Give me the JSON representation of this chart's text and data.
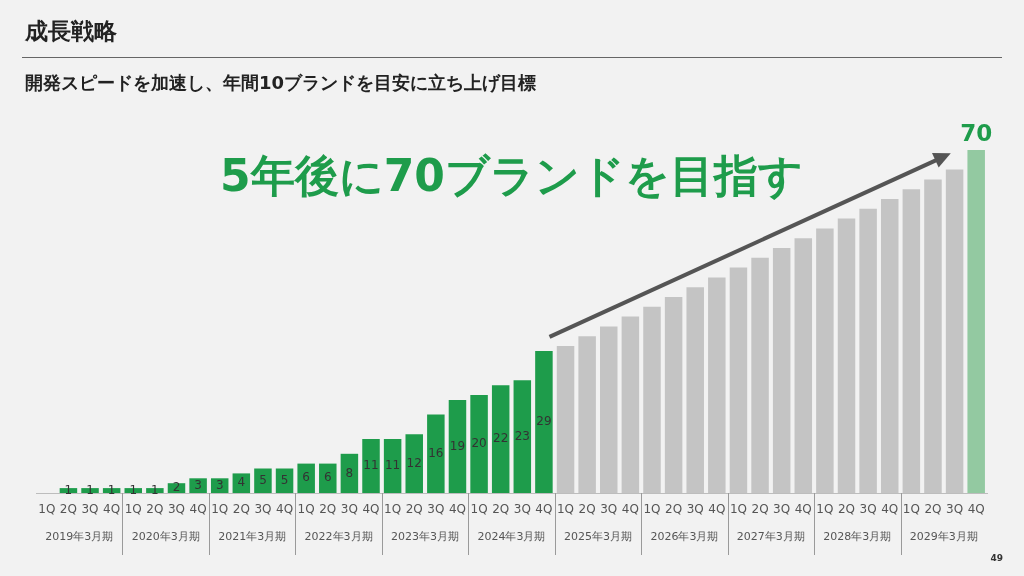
{
  "chart_data": {
    "type": "bar",
    "title": "成長戦略",
    "subtitle": "開発スピードを加速し、年間10ブランドを目安に立ち上げ目標",
    "categories": [
      "1Q",
      "2Q",
      "3Q",
      "4Q",
      "1Q",
      "2Q",
      "3Q",
      "4Q",
      "1Q",
      "2Q",
      "3Q",
      "4Q",
      "1Q",
      "2Q",
      "3Q",
      "4Q",
      "1Q",
      "2Q",
      "3Q",
      "4Q",
      "1Q",
      "2Q",
      "3Q",
      "4Q",
      "1Q",
      "2Q",
      "3Q",
      "4Q",
      "1Q",
      "2Q",
      "3Q",
      "4Q",
      "1Q",
      "2Q",
      "3Q",
      "4Q",
      "1Q",
      "2Q",
      "3Q",
      "4Q",
      "1Q",
      "2Q",
      "3Q",
      "4Q"
    ],
    "values": [
      null,
      1,
      1,
      1,
      1,
      1,
      2,
      3,
      3,
      4,
      5,
      5,
      6,
      6,
      8,
      11,
      11,
      12,
      16,
      19,
      20,
      22,
      23,
      29,
      30,
      32,
      34,
      36,
      38,
      40,
      42,
      44,
      46,
      48,
      50,
      52,
      54,
      56,
      58,
      60,
      62,
      64,
      66,
      70
    ],
    "value_labels": [
      null,
      "1",
      "1",
      "1",
      "1",
      "1",
      "2",
      "3",
      "3",
      "4",
      "5",
      "5",
      "6",
      "6",
      "8",
      "11",
      "11",
      "12",
      "16",
      "19",
      "20",
      "22",
      "23",
      "29",
      null,
      null,
      null,
      null,
      null,
      null,
      null,
      null,
      null,
      null,
      null,
      null,
      null,
      null,
      null,
      null,
      null,
      null,
      null,
      "70"
    ],
    "colors": [
      "#1e9c4b",
      "#1e9c4b",
      "#1e9c4b",
      "#1e9c4b",
      "#1e9c4b",
      "#1e9c4b",
      "#1e9c4b",
      "#1e9c4b",
      "#1e9c4b",
      "#1e9c4b",
      "#1e9c4b",
      "#1e9c4b",
      "#1e9c4b",
      "#1e9c4b",
      "#1e9c4b",
      "#1e9c4b",
      "#1e9c4b",
      "#1e9c4b",
      "#1e9c4b",
      "#1e9c4b",
      "#1e9c4b",
      "#1e9c4b",
      "#1e9c4b",
      "#1e9c4b",
      "#c4c4c4",
      "#c4c4c4",
      "#c4c4c4",
      "#c4c4c4",
      "#c4c4c4",
      "#c4c4c4",
      "#c4c4c4",
      "#c4c4c4",
      "#c4c4c4",
      "#c4c4c4",
      "#c4c4c4",
      "#c4c4c4",
      "#c4c4c4",
      "#c4c4c4",
      "#c4c4c4",
      "#c4c4c4",
      "#c4c4c4",
      "#c4c4c4",
      "#c4c4c4",
      "#93c9a1"
    ],
    "tick_labels": "x",
    "grid": false,
    "legend": false,
    "annotations": [
      "5年後に70ブランドを目指す",
      "2019年3月期",
      "2020年3月期",
      "2021年3月期",
      "2022年3月期",
      "2023年3月期",
      "2024年3月期",
      "2025年3月期",
      "2026年3月期",
      "2027年3月期",
      "2028年3月期",
      "2029年3月期",
      "49"
    ]
  }
}
